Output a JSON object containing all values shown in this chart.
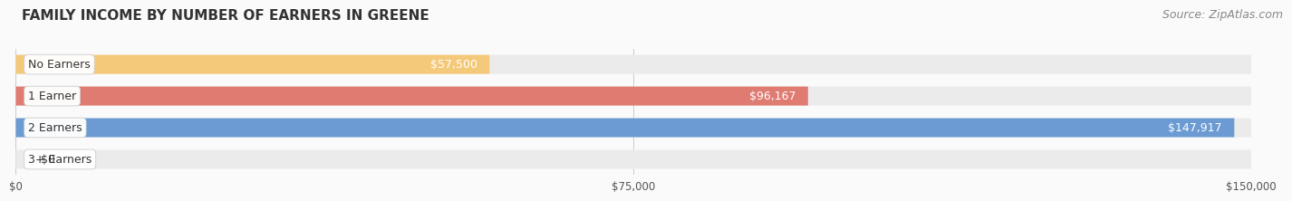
{
  "title": "FAMILY INCOME BY NUMBER OF EARNERS IN GREENE",
  "source": "Source: ZipAtlas.com",
  "categories": [
    "No Earners",
    "1 Earner",
    "2 Earners",
    "3+ Earners"
  ],
  "values": [
    57500,
    96167,
    147917,
    0
  ],
  "bar_colors": [
    "#F5C97A",
    "#E07B72",
    "#6B9BD2",
    "#C4A8D4"
  ],
  "bar_bg_color": "#EBEBEB",
  "value_labels": [
    "$57,500",
    "$96,167",
    "$147,917",
    "$0"
  ],
  "xlim": [
    0,
    150000
  ],
  "xticks": [
    0,
    75000,
    150000
  ],
  "xtick_labels": [
    "$0",
    "$75,000",
    "$150,000"
  ],
  "title_fontsize": 11,
  "source_fontsize": 9,
  "bar_label_fontsize": 9,
  "value_fontsize": 9,
  "fig_bg_color": "#FAFAFA"
}
